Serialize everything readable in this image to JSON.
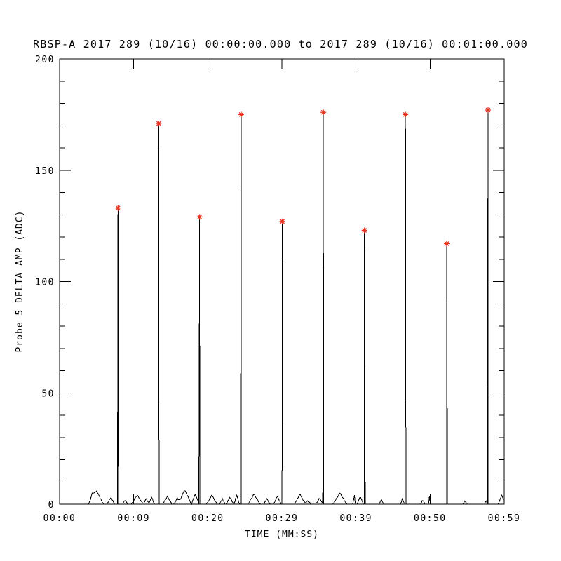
{
  "chart_data": {
    "type": "line",
    "title": "RBSP-A 2017 289 (10/16) 00:00:00.000 to 2017 289 (10/16) 00:01:00.000",
    "xlabel": "TIME (MM:SS)",
    "ylabel": "Probe 5 DELTA AMP (ADC)",
    "xlim_seconds": [
      0,
      59
    ],
    "xtick_labels": [
      "00:00",
      "00:09",
      "00:20",
      "00:29",
      "00:39",
      "00:50",
      "00:59"
    ],
    "ylim": [
      0,
      200
    ],
    "yticks_major": [
      0,
      50,
      100,
      150,
      200
    ],
    "ytick_minor_step": 10,
    "grid": false,
    "legend": "none",
    "background_color": "#ffffff",
    "line_color": "#000000",
    "marker": "asterisk",
    "marker_color": "#e8301d",
    "spikes": [
      {
        "t": 7.75,
        "peak": 133
      },
      {
        "t": 13.15,
        "peak": 171
      },
      {
        "t": 18.58,
        "peak": 129
      },
      {
        "t": 24.1,
        "peak": 175
      },
      {
        "t": 29.56,
        "peak": 127
      },
      {
        "t": 35.0,
        "peak": 176
      },
      {
        "t": 40.45,
        "peak": 123
      },
      {
        "t": 45.9,
        "peak": 175
      },
      {
        "t": 51.37,
        "peak": 117
      },
      {
        "t": 56.86,
        "peak": 177
      }
    ],
    "noise_bumps": [
      [
        4.3,
        3,
        0.5
      ],
      [
        4.9,
        6,
        0.9
      ],
      [
        6.8,
        3,
        0.5
      ],
      [
        8.7,
        2,
        0.3
      ],
      [
        10.3,
        4,
        0.8
      ],
      [
        11.5,
        2.5,
        0.4
      ],
      [
        12.2,
        3.5,
        0.35
      ],
      [
        14.3,
        3.5,
        0.6
      ],
      [
        15.6,
        3,
        0.4
      ],
      [
        16.6,
        6.5,
        0.9
      ],
      [
        18.0,
        4.5,
        0.5
      ],
      [
        20.2,
        4,
        0.7
      ],
      [
        21.6,
        2.5,
        0.4
      ],
      [
        22.6,
        3,
        0.5
      ],
      [
        23.5,
        4,
        0.35
      ],
      [
        25.8,
        4.5,
        0.8
      ],
      [
        27.5,
        2.5,
        0.4
      ],
      [
        28.9,
        3.5,
        0.5
      ],
      [
        31.9,
        4.6,
        0.7
      ],
      [
        32.9,
        1.5,
        0.5
      ],
      [
        34.5,
        2.6,
        0.5
      ],
      [
        37.2,
        5,
        0.9
      ],
      [
        39.1,
        4.4,
        0.15
      ],
      [
        39.9,
        3.3,
        0.4
      ],
      [
        42.7,
        2,
        0.3
      ],
      [
        45.5,
        2.5,
        0.25
      ],
      [
        48.2,
        2,
        0.3
      ],
      [
        49.1,
        4.2,
        0.12
      ],
      [
        53.8,
        1.5,
        0.3
      ],
      [
        56.6,
        2.2,
        0.15
      ],
      [
        58.7,
        4,
        0.5
      ]
    ]
  }
}
